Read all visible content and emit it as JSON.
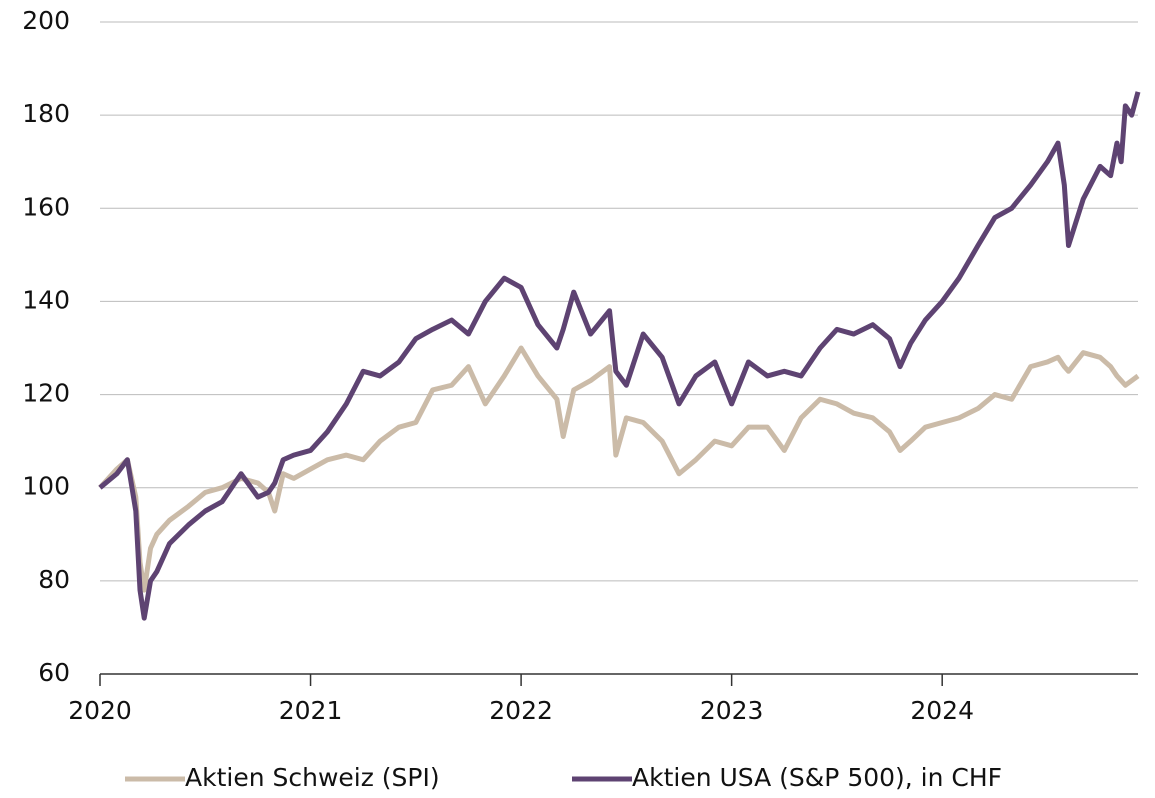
{
  "chart_data": {
    "type": "line",
    "x": [
      2020.0,
      2020.08,
      2020.13,
      2020.17,
      2020.19,
      2020.21,
      2020.24,
      2020.27,
      2020.33,
      2020.42,
      2020.5,
      2020.58,
      2020.67,
      2020.75,
      2020.8,
      2020.83,
      2020.87,
      2020.92,
      2021.0,
      2021.08,
      2021.17,
      2021.25,
      2021.33,
      2021.42,
      2021.5,
      2021.58,
      2021.67,
      2021.75,
      2021.83,
      2021.92,
      2022.0,
      2022.08,
      2022.17,
      2022.2,
      2022.25,
      2022.33,
      2022.42,
      2022.45,
      2022.5,
      2022.58,
      2022.67,
      2022.75,
      2022.83,
      2022.92,
      2023.0,
      2023.08,
      2023.17,
      2023.25,
      2023.33,
      2023.42,
      2023.5,
      2023.58,
      2023.67,
      2023.75,
      2023.8,
      2023.85,
      2023.92,
      2024.0,
      2024.08,
      2024.17,
      2024.25,
      2024.33,
      2024.42,
      2024.5,
      2024.55,
      2024.58,
      2024.6,
      2024.67,
      2024.75,
      2024.8,
      2024.83,
      2024.85,
      2024.87,
      2024.9,
      2024.93
    ],
    "series": [
      {
        "name": "Aktien Schweiz (SPI)",
        "color": "#cbbba8",
        "values": [
          100,
          104,
          106,
          98,
          84,
          78,
          87,
          90,
          93,
          96,
          99,
          100,
          102,
          101,
          99,
          95,
          103,
          102,
          104,
          106,
          107,
          106,
          110,
          113,
          114,
          121,
          122,
          126,
          118,
          124,
          130,
          124,
          119,
          111,
          121,
          123,
          126,
          107,
          115,
          114,
          110,
          103,
          106,
          110,
          109,
          113,
          113,
          108,
          115,
          119,
          118,
          116,
          115,
          112,
          108,
          110,
          113,
          114,
          115,
          117,
          120,
          119,
          126,
          127,
          128,
          126,
          125,
          129,
          128,
          126,
          124,
          123,
          122,
          123,
          124
        ]
      },
      {
        "name": "Aktien USA (S&P 500), in CHF",
        "color": "#5e4372",
        "values": [
          100,
          103,
          106,
          95,
          78,
          72,
          80,
          82,
          88,
          92,
          95,
          97,
          103,
          98,
          99,
          101,
          106,
          107,
          108,
          112,
          118,
          125,
          124,
          127,
          132,
          134,
          136,
          133,
          140,
          145,
          143,
          135,
          130,
          134,
          142,
          133,
          138,
          125,
          122,
          133,
          128,
          118,
          124,
          127,
          118,
          127,
          124,
          125,
          124,
          130,
          134,
          133,
          135,
          132,
          126,
          131,
          136,
          140,
          145,
          152,
          158,
          160,
          165,
          170,
          174,
          165,
          152,
          162,
          169,
          167,
          174,
          170,
          182,
          180,
          185
        ]
      }
    ],
    "xlim": [
      2020.0,
      2024.93
    ],
    "xticks": [
      2020,
      2021,
      2022,
      2023,
      2024
    ],
    "ylim": [
      60,
      200
    ],
    "yticks": [
      60,
      80,
      100,
      120,
      140,
      160,
      180,
      200
    ],
    "grid": true,
    "legend": "bottom"
  }
}
